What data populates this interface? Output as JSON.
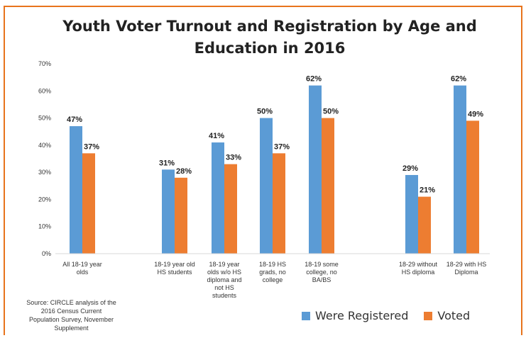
{
  "chart_data": {
    "type": "bar",
    "title": "Youth Voter Turnout and Registration by Age and Education in 2016",
    "xlabel": "",
    "ylabel": "",
    "ylim": [
      0,
      70
    ],
    "y_ticks": [
      "0%",
      "10%",
      "20%",
      "30%",
      "40%",
      "50%",
      "60%",
      "70%"
    ],
    "y_tick_values": [
      0,
      10,
      20,
      30,
      40,
      50,
      60,
      70
    ],
    "grid": false,
    "legend_position": "bottom-right",
    "categories": [
      "All 18-19 year olds",
      "18-19 year old HS students",
      "18-19 year olds w/o HS diploma and not HS students",
      "18-19 HS grads, no college",
      "18-19 some college, no BA/BS",
      "18-29 without HS diploma",
      "18-29 with HS Diploma"
    ],
    "category_label_lines": [
      [
        "All 18-19 year",
        "olds"
      ],
      [
        "18-19 year old",
        "HS students"
      ],
      [
        "18-19 year",
        "olds w/o HS",
        "diploma and",
        "not HS",
        "students"
      ],
      [
        "18-19 HS",
        "grads, no",
        "college"
      ],
      [
        "18-19 some",
        "college, no",
        "BA/BS"
      ],
      [
        "18-29 without",
        "HS diploma"
      ],
      [
        "18-29 with HS",
        "Diploma"
      ]
    ],
    "series": [
      {
        "name": "Were Registered",
        "color": "#5b9bd5",
        "values": [
          47,
          31,
          41,
          50,
          62,
          29,
          62
        ],
        "labels": [
          "47%",
          "31%",
          "41%",
          "50%",
          "62%",
          "29%",
          "62%"
        ]
      },
      {
        "name": "Voted",
        "color": "#ed7d31",
        "values": [
          37,
          28,
          33,
          37,
          50,
          21,
          49
        ],
        "labels": [
          "37%",
          "28%",
          "33%",
          "37%",
          "50%",
          "21%",
          "49%"
        ]
      }
    ]
  },
  "source_note": "Source: CIRCLE analysis of the\n2016 Census Current\nPopulation Survey, November\nSupplement"
}
